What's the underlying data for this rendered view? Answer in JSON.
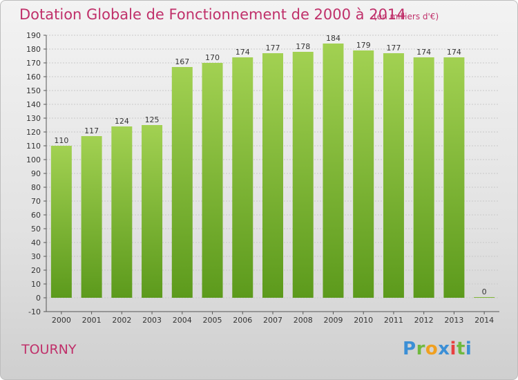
{
  "header": {
    "title": "Dotation Globale de Fonctionnement de 2000 à 2014",
    "unit": "(en milliers d'€)"
  },
  "footer": {
    "commune": "TOURNY",
    "logo_text": "Proxiti"
  },
  "colors": {
    "title": "#c0306a",
    "bar_top": "#a2d152",
    "bar_bottom": "#5c9a1c",
    "grid": "#c8c8c8"
  },
  "chart_data": {
    "type": "bar",
    "categories": [
      "2000",
      "2001",
      "2002",
      "2003",
      "2004",
      "2005",
      "2006",
      "2007",
      "2008",
      "2009",
      "2010",
      "2011",
      "2012",
      "2013",
      "2014"
    ],
    "values": [
      110,
      117,
      124,
      125,
      167,
      170,
      174,
      177,
      178,
      184,
      179,
      177,
      174,
      174,
      0
    ],
    "ylim": [
      -10,
      190
    ],
    "ytick_step": 10,
    "grid": true,
    "title": "Dotation Globale de Fonctionnement de 2000 à 2014",
    "xlabel": "",
    "ylabel": ""
  }
}
